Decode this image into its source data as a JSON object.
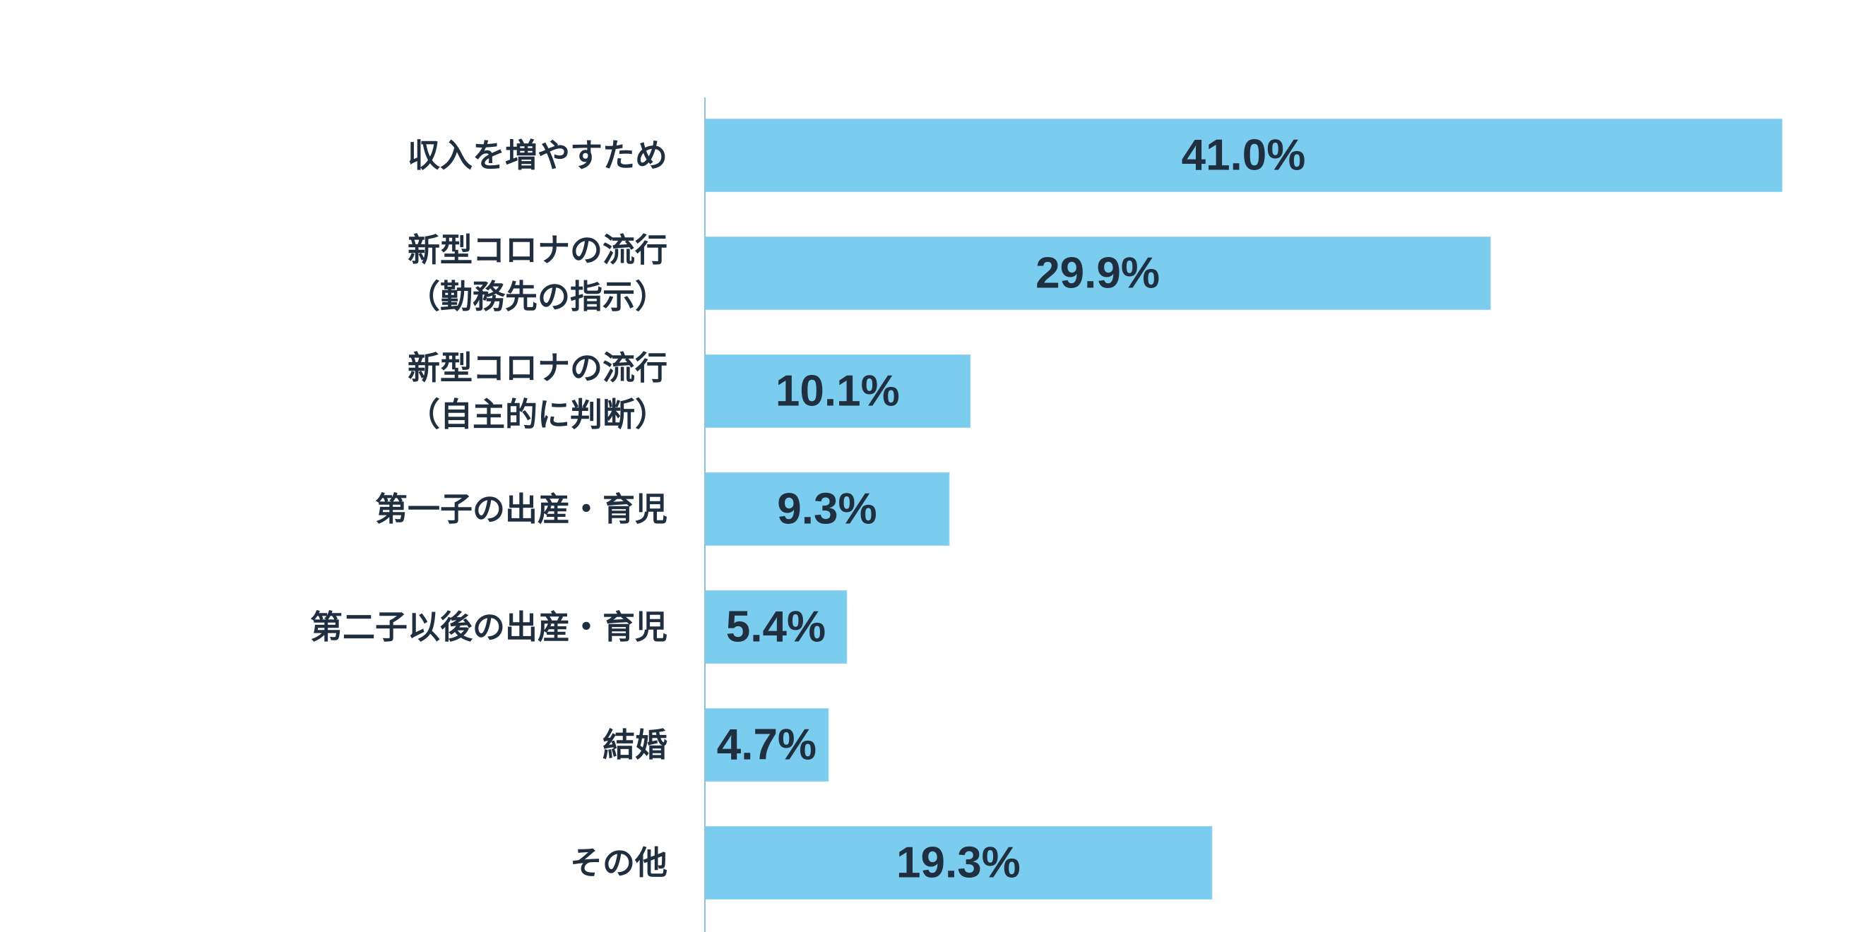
{
  "chart_data": {
    "type": "bar",
    "orientation": "horizontal",
    "categories": [
      [
        "収入を増やすため"
      ],
      [
        "新型コロナの流行",
        "（勤務先の指示）"
      ],
      [
        "新型コロナの流行",
        "（自主的に判断）"
      ],
      [
        "第一子の出産・育児"
      ],
      [
        "第二子以後の出産・育児"
      ],
      [
        "結婚"
      ],
      [
        "その他"
      ]
    ],
    "values": [
      41.0,
      29.9,
      10.1,
      9.3,
      5.4,
      4.7,
      19.3
    ],
    "data_labels": [
      "41.0%",
      "29.9%",
      "10.1%",
      "9.3%",
      "5.4%",
      "4.7%",
      "19.3%"
    ],
    "title": "",
    "xlabel": "",
    "ylabel": "",
    "xlim": [
      0,
      41.0
    ],
    "grid": false,
    "legend": "none"
  },
  "colors": {
    "bar_fill": "#7acdee",
    "bar_stroke": "#9dd6ee",
    "text": "#1f2f3f",
    "axis": "#8fc3db",
    "background": "#ffffff"
  }
}
